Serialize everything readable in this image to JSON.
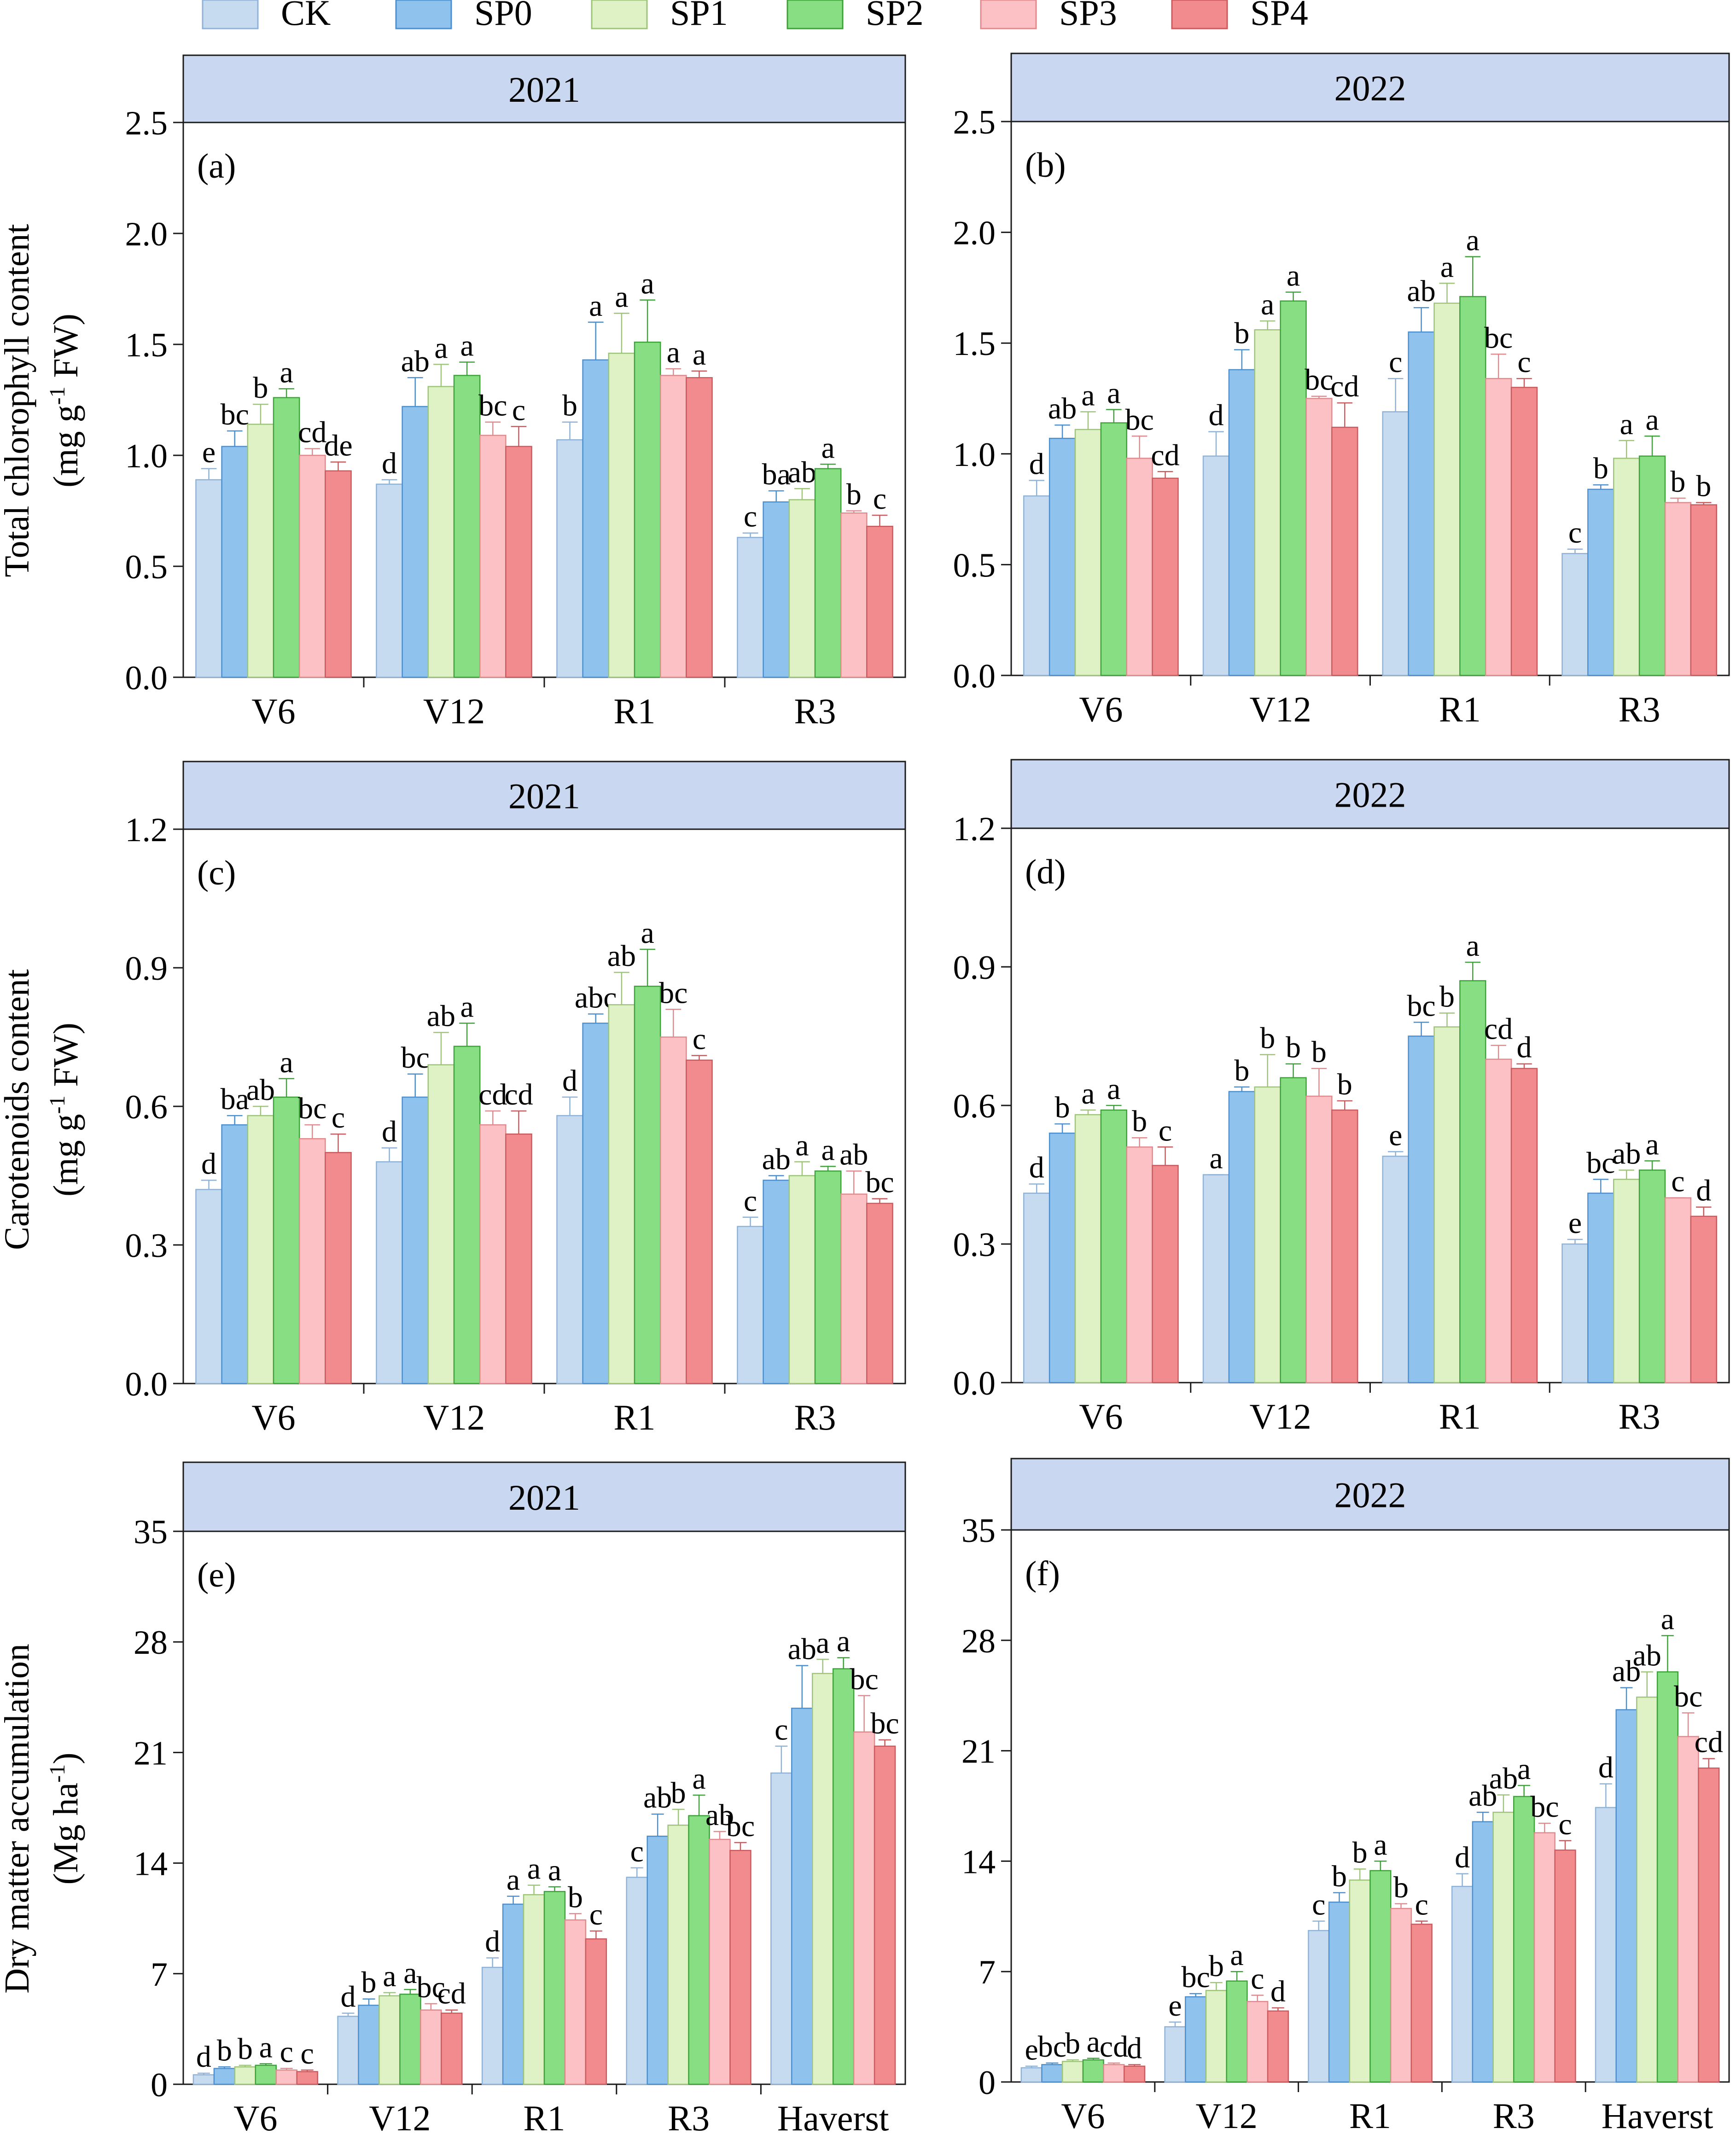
{
  "legend": [
    {
      "name": "CK",
      "fill": "#c6dbef",
      "stroke": "#8fb2d6"
    },
    {
      "name": "SP0",
      "fill": "#8fc3ee",
      "stroke": "#4c8fcf"
    },
    {
      "name": "SP1",
      "fill": "#dff2c6",
      "stroke": "#9ec47a"
    },
    {
      "name": "SP2",
      "fill": "#88de82",
      "stroke": "#3ea23a"
    },
    {
      "name": "SP3",
      "fill": "#fcc1c4",
      "stroke": "#e08a8e"
    },
    {
      "name": "SP4",
      "fill": "#f28b8e",
      "stroke": "#c95a5e"
    }
  ],
  "ylabels": {
    "chl": [
      "Total chlorophyll content",
      "(mg g",
      "-1",
      " FW)"
    ],
    "car": [
      "Carotenoids content",
      "(mg g",
      "-1",
      " FW)"
    ],
    "dm": [
      "Dry matter accumulation",
      "(Mg ha",
      "-1",
      ")"
    ]
  },
  "chart_data": [
    {
      "id": "a",
      "panel_label": "(a)",
      "year": "2021",
      "type": "bar",
      "categories": [
        "V6",
        "V12",
        "R1",
        "R3"
      ],
      "ylim": [
        0,
        2.5
      ],
      "yticks": [
        "0.0",
        "0.5",
        "1.0",
        "1.5",
        "2.0",
        "2.5"
      ],
      "series": [
        {
          "name": "CK",
          "values": [
            0.89,
            0.87,
            1.07,
            0.63
          ],
          "errors": [
            0.05,
            0.02,
            0.08,
            0.02
          ],
          "letters": [
            "e",
            "d",
            "b",
            "c"
          ]
        },
        {
          "name": "SP0",
          "values": [
            1.04,
            1.22,
            1.43,
            0.79
          ],
          "errors": [
            0.07,
            0.13,
            0.17,
            0.05
          ],
          "letters": [
            "bc",
            "ab",
            "a",
            "ba"
          ]
        },
        {
          "name": "SP1",
          "values": [
            1.14,
            1.31,
            1.46,
            0.8
          ],
          "errors": [
            0.09,
            0.1,
            0.18,
            0.05
          ],
          "letters": [
            "b",
            "a",
            "a",
            "ab"
          ]
        },
        {
          "name": "SP2",
          "values": [
            1.26,
            1.36,
            1.51,
            0.94
          ],
          "errors": [
            0.04,
            0.06,
            0.19,
            0.02
          ],
          "letters": [
            "a",
            "a",
            "a",
            "a"
          ]
        },
        {
          "name": "SP3",
          "values": [
            1.0,
            1.09,
            1.36,
            0.74
          ],
          "errors": [
            0.03,
            0.06,
            0.03,
            0.01
          ],
          "letters": [
            "cd",
            "bc",
            "a",
            "b"
          ]
        },
        {
          "name": "SP4",
          "values": [
            0.93,
            1.04,
            1.35,
            0.68
          ],
          "errors": [
            0.04,
            0.09,
            0.03,
            0.05
          ],
          "letters": [
            "de",
            "c",
            "a",
            "c"
          ]
        }
      ]
    },
    {
      "id": "b",
      "panel_label": "(b)",
      "year": "2022",
      "type": "bar",
      "categories": [
        "V6",
        "V12",
        "R1",
        "R3"
      ],
      "ylim": [
        0,
        2.5
      ],
      "yticks": [
        "0.0",
        "0.5",
        "1.0",
        "1.5",
        "2.0",
        "2.5"
      ],
      "series": [
        {
          "name": "CK",
          "values": [
            0.81,
            0.99,
            1.19,
            0.55
          ],
          "errors": [
            0.07,
            0.11,
            0.15,
            0.02
          ],
          "letters": [
            "d",
            "d",
            "c",
            "c"
          ]
        },
        {
          "name": "SP0",
          "values": [
            1.07,
            1.38,
            1.55,
            0.84
          ],
          "errors": [
            0.06,
            0.09,
            0.11,
            0.02
          ],
          "letters": [
            "ab",
            "b",
            "ab",
            "b"
          ]
        },
        {
          "name": "SP1",
          "values": [
            1.11,
            1.56,
            1.68,
            0.98
          ],
          "errors": [
            0.08,
            0.04,
            0.09,
            0.08
          ],
          "letters": [
            "a",
            "a",
            "a",
            "a"
          ]
        },
        {
          "name": "SP2",
          "values": [
            1.14,
            1.69,
            1.71,
            0.99
          ],
          "errors": [
            0.06,
            0.04,
            0.18,
            0.09
          ],
          "letters": [
            "a",
            "a",
            "a",
            "a"
          ]
        },
        {
          "name": "SP3",
          "values": [
            0.98,
            1.25,
            1.34,
            0.78
          ],
          "errors": [
            0.1,
            0.01,
            0.11,
            0.02
          ],
          "letters": [
            "bc",
            "bc",
            "bc",
            "b"
          ]
        },
        {
          "name": "SP4",
          "values": [
            0.89,
            1.12,
            1.3,
            0.77
          ],
          "errors": [
            0.03,
            0.11,
            0.04,
            0.01
          ],
          "letters": [
            "cd",
            "cd",
            "c",
            "b"
          ]
        }
      ]
    },
    {
      "id": "c",
      "panel_label": "(c)",
      "year": "2021",
      "type": "bar",
      "categories": [
        "V6",
        "V12",
        "R1",
        "R3"
      ],
      "ylim": [
        0,
        1.2
      ],
      "yticks": [
        "0.0",
        "0.3",
        "0.6",
        "0.9",
        "1.2"
      ],
      "series": [
        {
          "name": "CK",
          "values": [
            0.42,
            0.48,
            0.58,
            0.34
          ],
          "errors": [
            0.02,
            0.03,
            0.04,
            0.02
          ],
          "letters": [
            "d",
            "d",
            "d",
            "c"
          ]
        },
        {
          "name": "SP0",
          "values": [
            0.56,
            0.62,
            0.78,
            0.44
          ],
          "errors": [
            0.02,
            0.05,
            0.02,
            0.01
          ],
          "letters": [
            "ba",
            "bc",
            "abc",
            "ab"
          ]
        },
        {
          "name": "SP1",
          "values": [
            0.58,
            0.69,
            0.82,
            0.45
          ],
          "errors": [
            0.02,
            0.07,
            0.07,
            0.03
          ],
          "letters": [
            "ab",
            "ab",
            "ab",
            "a"
          ]
        },
        {
          "name": "SP2",
          "values": [
            0.62,
            0.73,
            0.86,
            0.46
          ],
          "errors": [
            0.04,
            0.05,
            0.08,
            0.01
          ],
          "letters": [
            "a",
            "a",
            "a",
            "a"
          ]
        },
        {
          "name": "SP3",
          "values": [
            0.53,
            0.56,
            0.75,
            0.41
          ],
          "errors": [
            0.03,
            0.03,
            0.06,
            0.05
          ],
          "letters": [
            "bc",
            "cd",
            "bc",
            "ab"
          ]
        },
        {
          "name": "SP4",
          "values": [
            0.5,
            0.54,
            0.7,
            0.39
          ],
          "errors": [
            0.04,
            0.05,
            0.01,
            0.01
          ],
          "letters": [
            "c",
            "cd",
            "c",
            "bc"
          ]
        }
      ]
    },
    {
      "id": "d",
      "panel_label": "(d)",
      "year": "2022",
      "type": "bar",
      "categories": [
        "V6",
        "V12",
        "R1",
        "R3"
      ],
      "ylim": [
        0,
        1.2
      ],
      "yticks": [
        "0.0",
        "0.3",
        "0.6",
        "0.9",
        "1.2"
      ],
      "series": [
        {
          "name": "CK",
          "values": [
            0.41,
            0.45,
            0.49,
            0.3
          ],
          "errors": [
            0.02,
            0.0,
            0.01,
            0.01
          ],
          "letters": [
            "d",
            "a",
            "e",
            "e"
          ]
        },
        {
          "name": "SP0",
          "values": [
            0.54,
            0.63,
            0.75,
            0.41
          ],
          "errors": [
            0.02,
            0.01,
            0.03,
            0.03
          ],
          "letters": [
            "b",
            "b",
            "bc",
            "bc"
          ]
        },
        {
          "name": "SP1",
          "values": [
            0.58,
            0.64,
            0.77,
            0.44
          ],
          "errors": [
            0.01,
            0.07,
            0.03,
            0.02
          ],
          "letters": [
            "a",
            "b",
            "b",
            "ab"
          ]
        },
        {
          "name": "SP2",
          "values": [
            0.59,
            0.66,
            0.87,
            0.46
          ],
          "errors": [
            0.01,
            0.03,
            0.04,
            0.02
          ],
          "letters": [
            "a",
            "b",
            "a",
            "a"
          ]
        },
        {
          "name": "SP3",
          "values": [
            0.51,
            0.62,
            0.7,
            0.4
          ],
          "errors": [
            0.02,
            0.06,
            0.03,
            0.0
          ],
          "letters": [
            "b",
            "b",
            "cd",
            "c"
          ]
        },
        {
          "name": "SP4",
          "values": [
            0.47,
            0.59,
            0.68,
            0.36
          ],
          "errors": [
            0.04,
            0.02,
            0.01,
            0.02
          ],
          "letters": [
            "c",
            "b",
            "d",
            "d"
          ]
        }
      ]
    },
    {
      "id": "e",
      "panel_label": "(e)",
      "year": "2021",
      "type": "bar",
      "categories": [
        "V6",
        "V12",
        "R1",
        "R3",
        "Haverst"
      ],
      "ylim": [
        0,
        35
      ],
      "yticks": [
        "0",
        "7",
        "14",
        "21",
        "28",
        "35"
      ],
      "series": [
        {
          "name": "CK",
          "values": [
            0.6,
            4.3,
            7.4,
            13.1,
            19.7
          ],
          "errors": [
            0.1,
            0.2,
            0.6,
            0.6,
            1.7
          ],
          "letters": [
            "d",
            "d",
            "d",
            "c",
            "c"
          ]
        },
        {
          "name": "SP0",
          "values": [
            1.0,
            5.0,
            11.4,
            15.7,
            23.8
          ],
          "errors": [
            0.1,
            0.4,
            0.5,
            1.4,
            2.7
          ],
          "letters": [
            "b",
            "b",
            "a",
            "ab",
            "ab"
          ]
        },
        {
          "name": "SP1",
          "values": [
            1.1,
            5.6,
            12.0,
            16.4,
            26.0
          ],
          "errors": [
            0.1,
            0.2,
            0.6,
            1.0,
            0.9
          ],
          "letters": [
            "b",
            "a",
            "a",
            "b",
            "a"
          ]
        },
        {
          "name": "SP2",
          "values": [
            1.2,
            5.7,
            12.2,
            17.0,
            26.3
          ],
          "errors": [
            0.1,
            0.3,
            0.3,
            1.3,
            0.7
          ],
          "letters": [
            "a",
            "a",
            "a",
            "a",
            "a"
          ]
        },
        {
          "name": "SP3",
          "values": [
            0.9,
            4.7,
            10.4,
            15.5,
            22.3
          ],
          "errors": [
            0.1,
            0.4,
            0.4,
            0.5,
            2.3
          ],
          "letters": [
            "c",
            "bc",
            "b",
            "ab",
            "bc"
          ]
        },
        {
          "name": "SP4",
          "values": [
            0.8,
            4.5,
            9.2,
            14.8,
            21.4
          ],
          "errors": [
            0.1,
            0.2,
            0.5,
            0.5,
            0.4
          ],
          "letters": [
            "c",
            "cd",
            "c",
            "bc",
            "bc"
          ]
        }
      ]
    },
    {
      "id": "f",
      "panel_label": "(f)",
      "year": "2022",
      "type": "bar",
      "categories": [
        "V6",
        "V12",
        "R1",
        "R3",
        "Haverst"
      ],
      "ylim": [
        0,
        35
      ],
      "yticks": [
        "0",
        "7",
        "14",
        "21",
        "28",
        "35"
      ],
      "series": [
        {
          "name": "CK",
          "values": [
            0.9,
            3.5,
            9.6,
            12.4,
            17.4
          ],
          "errors": [
            0.1,
            0.3,
            0.6,
            0.8,
            1.5
          ],
          "letters": [
            "e",
            "e",
            "c",
            "d",
            "d"
          ]
        },
        {
          "name": "SP0",
          "values": [
            1.1,
            5.4,
            11.4,
            16.5,
            23.6
          ],
          "errors": [
            0.1,
            0.2,
            0.6,
            0.6,
            1.4
          ],
          "letters": [
            "bc",
            "bc",
            "b",
            "ab",
            "ab"
          ]
        },
        {
          "name": "SP1",
          "values": [
            1.3,
            5.8,
            12.8,
            17.1,
            24.4
          ],
          "errors": [
            0.1,
            0.5,
            0.7,
            1.1,
            1.6
          ],
          "letters": [
            "b",
            "b",
            "b",
            "ab",
            "ab"
          ]
        },
        {
          "name": "SP2",
          "values": [
            1.4,
            6.4,
            13.4,
            18.1,
            26.0
          ],
          "errors": [
            0.1,
            0.6,
            0.6,
            0.7,
            2.3
          ],
          "letters": [
            "a",
            "a",
            "a",
            "a",
            "a"
          ]
        },
        {
          "name": "SP3",
          "values": [
            1.1,
            5.1,
            11.0,
            15.8,
            21.9
          ],
          "errors": [
            0.1,
            0.4,
            0.3,
            0.6,
            1.5
          ],
          "letters": [
            "cd",
            "c",
            "b",
            "bc",
            "bc"
          ]
        },
        {
          "name": "SP4",
          "values": [
            1.0,
            4.5,
            10.0,
            14.7,
            19.9
          ],
          "errors": [
            0.1,
            0.2,
            0.2,
            0.6,
            0.6
          ],
          "letters": [
            "d",
            "d",
            "c",
            "c",
            "cd"
          ]
        }
      ]
    }
  ]
}
